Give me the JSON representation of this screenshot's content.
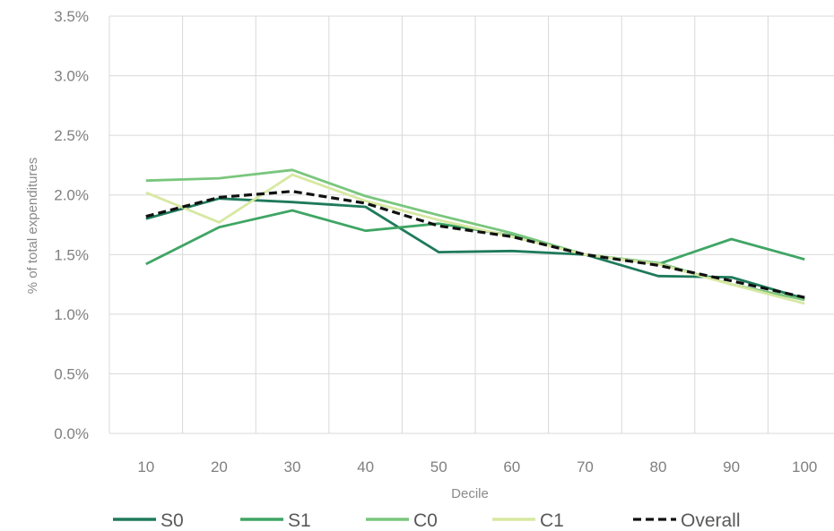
{
  "chart_data": {
    "type": "line",
    "title": "",
    "xlabel": "Decile",
    "ylabel": "% of total expenditures",
    "categories": [
      "10",
      "20",
      "30",
      "40",
      "50",
      "60",
      "70",
      "80",
      "90",
      "100"
    ],
    "ylim": [
      0,
      3.5
    ],
    "yticks": [
      "0.0%",
      "0.5%",
      "1.0%",
      "1.5%",
      "2.0%",
      "2.5%",
      "3.0%",
      "3.5%"
    ],
    "ytick_values": [
      0,
      0.5,
      1.0,
      1.5,
      2.0,
      2.5,
      3.0,
      3.5
    ],
    "grid": true,
    "legend_position": "bottom",
    "series": [
      {
        "name": "S0",
        "color": "#1e7a5a",
        "dashed": false,
        "values": [
          1.8,
          1.97,
          1.94,
          1.9,
          1.52,
          1.53,
          1.5,
          1.32,
          1.31,
          1.13
        ]
      },
      {
        "name": "S1",
        "color": "#3fa564",
        "dashed": false,
        "values": [
          1.42,
          1.73,
          1.87,
          1.7,
          1.76,
          1.66,
          1.5,
          1.42,
          1.63,
          1.46
        ]
      },
      {
        "name": "C0",
        "color": "#79c67d",
        "dashed": false,
        "values": [
          2.12,
          2.14,
          2.21,
          1.99,
          1.83,
          1.68,
          1.5,
          1.43,
          1.25,
          1.12
        ]
      },
      {
        "name": "C1",
        "color": "#d7e8a2",
        "dashed": false,
        "values": [
          2.02,
          1.77,
          2.17,
          1.95,
          1.79,
          1.65,
          1.5,
          1.42,
          1.25,
          1.09
        ]
      },
      {
        "name": "Overall",
        "color": "#111111",
        "dashed": true,
        "values": [
          1.82,
          1.98,
          2.03,
          1.93,
          1.74,
          1.65,
          1.5,
          1.41,
          1.28,
          1.14
        ]
      }
    ]
  }
}
